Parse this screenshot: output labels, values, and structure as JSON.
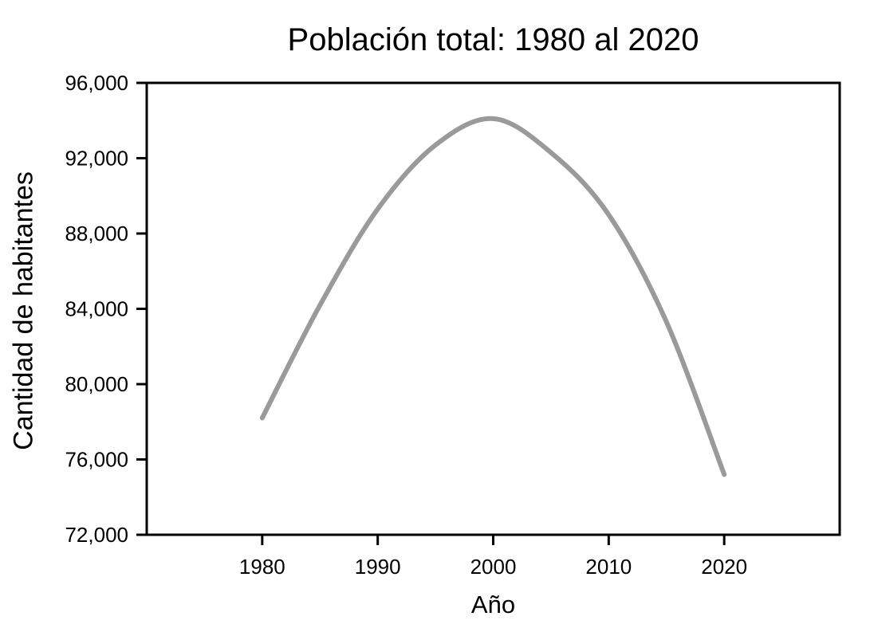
{
  "page": {
    "background_color": "#ffffff"
  },
  "chart_data": {
    "type": "line",
    "title": "Población total: 1980 al 2020",
    "xlabel": "Año",
    "ylabel": "Cantidad de habitantes",
    "x": [
      1980,
      1985,
      1990,
      1995,
      2000,
      2005,
      2010,
      2015,
      2020
    ],
    "series": [
      {
        "name": "Población total",
        "values": [
          78200,
          84200,
          89300,
          92700,
          94100,
          92300,
          89000,
          83300,
          75200
        ],
        "color": "#9a9a9a",
        "line_width": 6
      }
    ],
    "xlim": [
      1970,
      2030
    ],
    "ylim": [
      72000,
      96000
    ],
    "x_ticks": [
      {
        "value": 1980,
        "label": "1980"
      },
      {
        "value": 1990,
        "label": "1990"
      },
      {
        "value": 2000,
        "label": "2000"
      },
      {
        "value": 2010,
        "label": "2010"
      },
      {
        "value": 2020,
        "label": "2020"
      }
    ],
    "y_ticks": [
      {
        "value": 72000,
        "label": "72,000"
      },
      {
        "value": 76000,
        "label": "76,000"
      },
      {
        "value": 80000,
        "label": "80,000"
      },
      {
        "value": 84000,
        "label": "84,000"
      },
      {
        "value": 88000,
        "label": "88,000"
      },
      {
        "value": 92000,
        "label": "92,000"
      },
      {
        "value": 96000,
        "label": "96,000"
      }
    ],
    "grid": false,
    "legend": false,
    "frame": true,
    "axis_color": "#000000",
    "text_color": "#000000"
  }
}
